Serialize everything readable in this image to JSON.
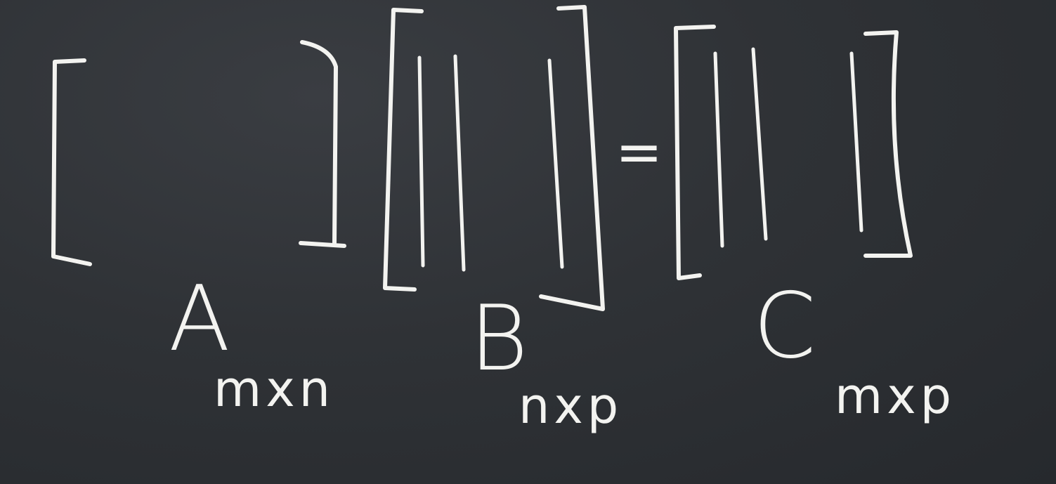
{
  "equation": {
    "matrix_a": {
      "name": "A",
      "dims": "mxn"
    },
    "matrix_b": {
      "name": "B",
      "dims": "nxp"
    },
    "equals": "=",
    "matrix_c": {
      "name": "C",
      "dims": "mxp"
    }
  },
  "colors": {
    "board": "#2e3135",
    "chalk": "#f3f3f0"
  }
}
